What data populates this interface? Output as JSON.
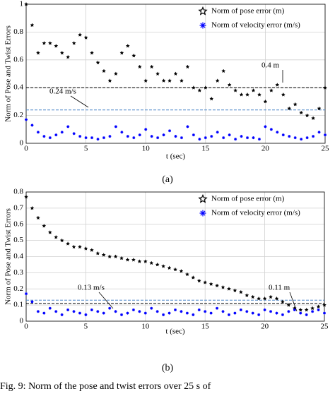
{
  "caption": "Fig. 9: Norm of the pose and twist errors over 25 s of",
  "chart_data": [
    {
      "type": "scatter",
      "panel_label": "(a)",
      "x_label": "t (sec)",
      "y_label": "Norm of Pose and Twist Errors",
      "x": [
        0,
        0.5,
        1,
        1.5,
        2,
        2.5,
        3,
        3.5,
        4,
        4.5,
        5,
        5.5,
        6,
        6.5,
        7,
        7.5,
        8,
        8.5,
        9,
        9.5,
        10,
        10.5,
        11,
        11.5,
        12,
        12.5,
        13,
        13.5,
        14,
        14.5,
        15,
        15.5,
        16,
        16.5,
        17,
        17.5,
        18,
        18.5,
        19,
        19.5,
        20,
        20.5,
        21,
        21.5,
        22,
        22.5,
        23,
        23.5,
        24,
        24.5,
        25
      ],
      "series": [
        {
          "name": "Norm of pose error (m)",
          "color": "#000000",
          "values": [
            1.0,
            0.85,
            0.65,
            0.72,
            0.72,
            0.7,
            0.65,
            0.62,
            0.72,
            0.78,
            0.76,
            0.65,
            0.58,
            0.52,
            0.45,
            0.5,
            0.65,
            0.7,
            0.63,
            0.55,
            0.45,
            0.55,
            0.5,
            0.45,
            0.45,
            0.5,
            0.45,
            0.55,
            0.4,
            0.38,
            0.4,
            0.32,
            0.45,
            0.52,
            0.42,
            0.38,
            0.35,
            0.35,
            0.38,
            0.35,
            0.3,
            0.38,
            0.42,
            0.35,
            0.25,
            0.28,
            0.22,
            0.2,
            0.18,
            0.25,
            0.4
          ]
        },
        {
          "name": "Norm of velocity error (m/s)",
          "color": "#0000ff",
          "values": [
            0.17,
            0.13,
            0.08,
            0.05,
            0.04,
            0.06,
            0.08,
            0.12,
            0.07,
            0.05,
            0.04,
            0.04,
            0.03,
            0.04,
            0.05,
            0.12,
            0.08,
            0.05,
            0.04,
            0.06,
            0.1,
            0.05,
            0.04,
            0.06,
            0.09,
            0.05,
            0.04,
            0.12,
            0.06,
            0.03,
            0.04,
            0.05,
            0.08,
            0.04,
            0.06,
            0.03,
            0.05,
            0.04,
            0.04,
            0.03,
            0.12,
            0.1,
            0.08,
            0.06,
            0.05,
            0.04,
            0.03,
            0.04,
            0.05,
            0.08,
            0.06
          ]
        }
      ],
      "reference_lines": [
        {
          "value": 0.4,
          "label": "0.4 m",
          "color": "#000000"
        },
        {
          "value": 0.24,
          "label": "0.24 m/s",
          "color": "#4a86c8"
        }
      ],
      "xlim": [
        0,
        25
      ],
      "xticks": [
        0,
        5,
        10,
        15,
        20,
        25
      ],
      "ylim": [
        0,
        1
      ],
      "yticks": [
        0,
        0.2,
        0.4,
        0.6,
        0.8,
        1
      ],
      "grid": true,
      "legend": "upper right"
    },
    {
      "type": "scatter",
      "panel_label": "(b)",
      "x_label": "t (sec)",
      "y_label": "Norm of Pose and Twist Errors",
      "x": [
        0,
        0.5,
        1,
        1.5,
        2,
        2.5,
        3,
        3.5,
        4,
        4.5,
        5,
        5.5,
        6,
        6.5,
        7,
        7.5,
        8,
        8.5,
        9,
        9.5,
        10,
        10.5,
        11,
        11.5,
        12,
        12.5,
        13,
        13.5,
        14,
        14.5,
        15,
        15.5,
        16,
        16.5,
        17,
        17.5,
        18,
        18.5,
        19,
        19.5,
        20,
        20.5,
        21,
        21.5,
        22,
        22.5,
        23,
        23.5,
        24,
        24.5,
        25
      ],
      "series": [
        {
          "name": "Norm of pose error (m)",
          "color": "#000000",
          "values": [
            0.77,
            0.7,
            0.64,
            0.59,
            0.55,
            0.52,
            0.5,
            0.48,
            0.46,
            0.46,
            0.45,
            0.44,
            0.42,
            0.41,
            0.4,
            0.4,
            0.39,
            0.38,
            0.38,
            0.37,
            0.37,
            0.36,
            0.35,
            0.34,
            0.33,
            0.32,
            0.31,
            0.29,
            0.27,
            0.25,
            0.24,
            0.23,
            0.22,
            0.21,
            0.2,
            0.19,
            0.18,
            0.16,
            0.15,
            0.14,
            0.14,
            0.15,
            0.14,
            0.12,
            0.1,
            0.08,
            0.07,
            0.07,
            0.08,
            0.09,
            0.1
          ]
        },
        {
          "name": "Norm of velocity error (m/s)",
          "color": "#0000ff",
          "values": [
            0.17,
            0.12,
            0.06,
            0.05,
            0.08,
            0.06,
            0.04,
            0.07,
            0.06,
            0.05,
            0.04,
            0.07,
            0.06,
            0.05,
            0.08,
            0.06,
            0.04,
            0.05,
            0.07,
            0.06,
            0.05,
            0.08,
            0.06,
            0.04,
            0.05,
            0.07,
            0.06,
            0.05,
            0.04,
            0.07,
            0.06,
            0.05,
            0.08,
            0.06,
            0.04,
            0.05,
            0.07,
            0.06,
            0.05,
            0.04,
            0.07,
            0.06,
            0.05,
            0.04,
            0.06,
            0.07,
            0.05,
            0.04,
            0.06,
            0.07,
            0.05
          ]
        }
      ],
      "reference_lines": [
        {
          "value": 0.13,
          "label": "0.13 m/s",
          "color": "#4a86c8"
        },
        {
          "value": 0.11,
          "label": "0.11 m",
          "color": "#000000"
        }
      ],
      "xlim": [
        0,
        25
      ],
      "xticks": [
        0,
        5,
        10,
        15,
        20,
        25
      ],
      "ylim": [
        0,
        0.8
      ],
      "yticks": [
        0,
        0.1,
        0.2,
        0.3,
        0.4,
        0.5,
        0.6,
        0.7,
        0.8
      ],
      "grid": true,
      "legend": "upper right"
    }
  ]
}
